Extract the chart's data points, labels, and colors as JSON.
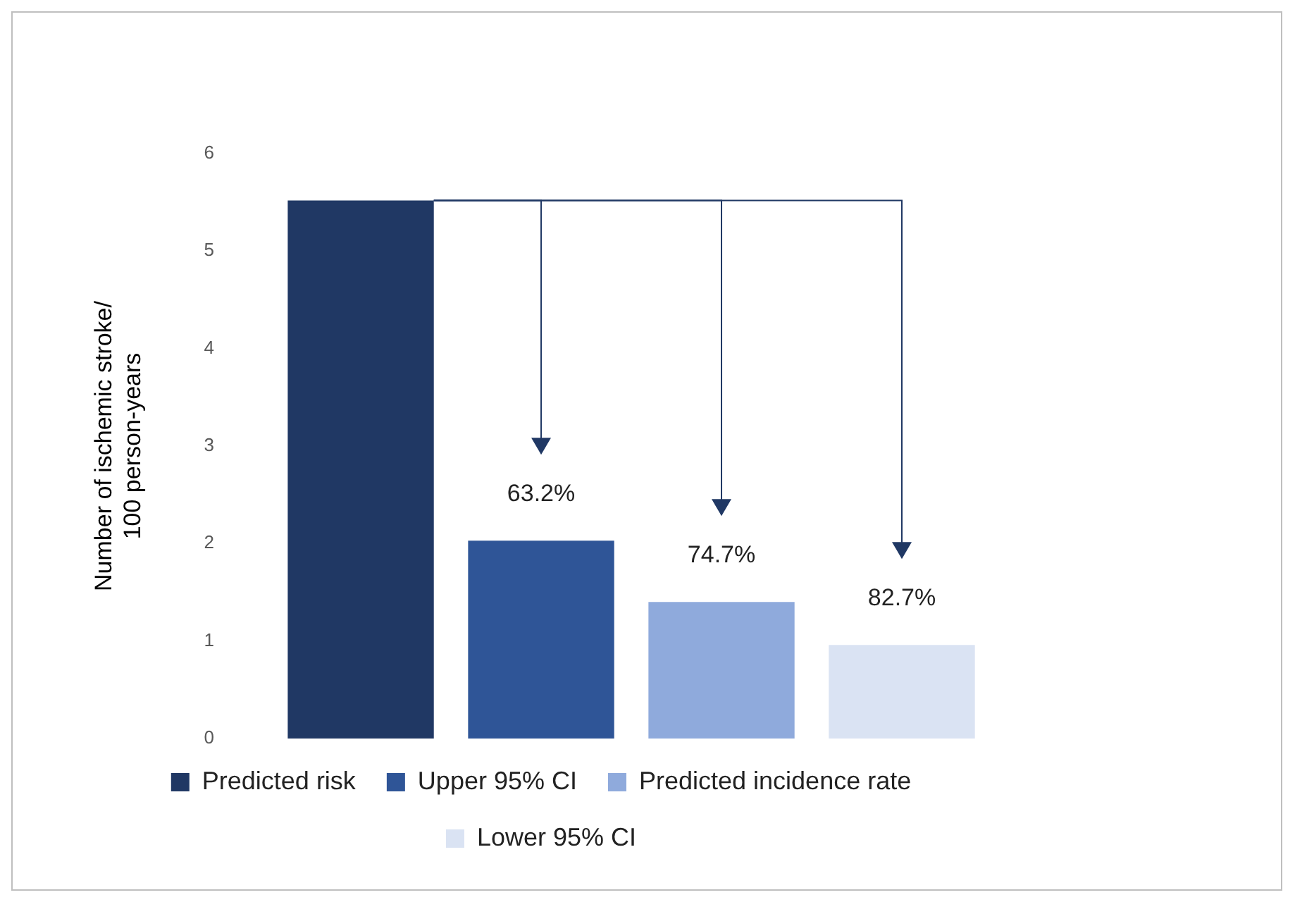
{
  "chart_data": {
    "type": "bar",
    "ylabel": "Number of ischemic stroke/ 100 person-years",
    "categories": [
      null
    ],
    "series": [
      {
        "name": "Predicted risk",
        "color": "#203864",
        "values": [
          5.52
        ]
      },
      {
        "name": "Upper 95% CI",
        "color": "#2f5597",
        "values": [
          2.03
        ]
      },
      {
        "name": "Predicted incidence rate",
        "color": "#8faadc",
        "values": [
          1.4
        ]
      },
      {
        "name": "Lower 95% CI",
        "color": "#dae3f3",
        "values": [
          0.96
        ]
      }
    ],
    "ylim": [
      0,
      6
    ],
    "yticks": [
      0,
      1,
      2,
      3,
      4,
      5,
      6
    ],
    "grid": false,
    "legend": "bottom",
    "tick_labels": "y",
    "annotations": [
      "63.2%",
      "74.7%",
      "82.7%"
    ]
  }
}
